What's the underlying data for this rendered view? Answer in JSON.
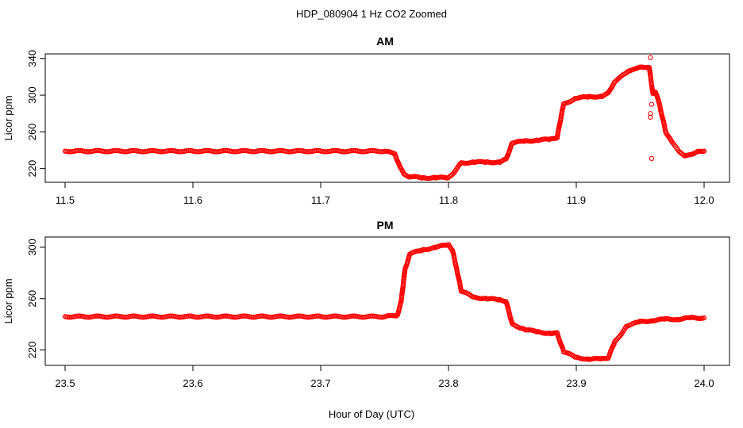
{
  "figure_title": "HDP_080904  1 Hz CO2 Zoomed",
  "x_axis_label": "Hour of Day (UTC)",
  "colors": {
    "points": "#ff0000",
    "axes": "#000000",
    "background": "#ffffff"
  },
  "chart_data": [
    {
      "type": "scatter",
      "title": "AM",
      "xlabel": "",
      "ylabel": "Licor ppm",
      "xlim": [
        11.5,
        12.0
      ],
      "ylim": [
        205,
        345
      ],
      "xticks": [
        11.5,
        11.6,
        11.7,
        11.8,
        11.9,
        12.0
      ],
      "xtick_labels": [
        "11.5",
        "11.6",
        "11.7",
        "11.8",
        "11.9",
        "12.0"
      ],
      "yticks": [
        220,
        260,
        300,
        340
      ],
      "ytick_labels": [
        "220",
        "260",
        "300",
        "340"
      ],
      "grid": false,
      "series": [
        {
          "x": [
            11.5,
            11.55,
            11.6,
            11.65,
            11.7,
            11.75,
            11.758,
            11.762,
            11.765,
            11.77,
            11.78,
            11.79,
            11.8,
            11.805,
            11.81,
            11.82,
            11.83,
            11.84,
            11.845,
            11.85,
            11.86,
            11.87,
            11.88,
            11.885,
            11.89,
            11.9,
            11.91,
            11.92,
            11.925,
            11.93,
            11.94,
            11.945,
            11.95,
            11.957,
            11.96,
            11.962,
            11.965,
            11.97,
            11.975,
            11.98,
            11.985,
            11.99,
            11.995,
            12.0
          ],
          "y": [
            239,
            239,
            239,
            239,
            239,
            239,
            236,
            222,
            214,
            211,
            210,
            210,
            210,
            217,
            226,
            227,
            227,
            227,
            230,
            248,
            250,
            251,
            252,
            254,
            290,
            297,
            298,
            299,
            302,
            315,
            325,
            329,
            330,
            331,
            301,
            304,
            290,
            260,
            248,
            240,
            233,
            236,
            238,
            239
          ]
        },
        {
          "name": "",
          "x": [
            11.958,
            11.958,
            11.958,
            11.959,
            11.959
          ],
          "y": [
            341,
            280,
            276,
            290,
            231
          ]
        }
      ]
    },
    {
      "type": "scatter",
      "title": "PM",
      "xlabel": "",
      "ylabel": "Licor ppm",
      "xlim": [
        23.5,
        24.0
      ],
      "ylim": [
        208,
        308
      ],
      "xticks": [
        23.5,
        23.6,
        23.7,
        23.8,
        23.9,
        24.0
      ],
      "xtick_labels": [
        "23.5",
        "23.6",
        "23.7",
        "23.8",
        "23.9",
        "24.0"
      ],
      "yticks": [
        220,
        260,
        300
      ],
      "ytick_labels": [
        "220",
        "260",
        "300"
      ],
      "grid": false,
      "series": [
        {
          "x": [
            23.5,
            23.55,
            23.6,
            23.65,
            23.7,
            23.75,
            23.76,
            23.763,
            23.766,
            23.77,
            23.78,
            23.79,
            23.8,
            23.803,
            23.806,
            23.81,
            23.82,
            23.83,
            23.84,
            23.845,
            23.85,
            23.86,
            23.87,
            23.88,
            23.885,
            23.89,
            23.9,
            23.91,
            23.92,
            23.925,
            23.93,
            23.94,
            23.95,
            23.96,
            23.97,
            23.98,
            23.99,
            24.0
          ],
          "y": [
            246,
            246,
            246,
            246,
            246,
            246,
            247,
            258,
            283,
            295,
            298,
            300,
            302,
            298,
            285,
            266,
            261,
            260,
            259,
            258,
            240,
            236,
            234,
            233,
            233,
            219,
            214,
            213,
            213,
            214,
            226,
            239,
            242,
            243,
            244,
            244,
            245,
            245
          ]
        }
      ]
    }
  ]
}
